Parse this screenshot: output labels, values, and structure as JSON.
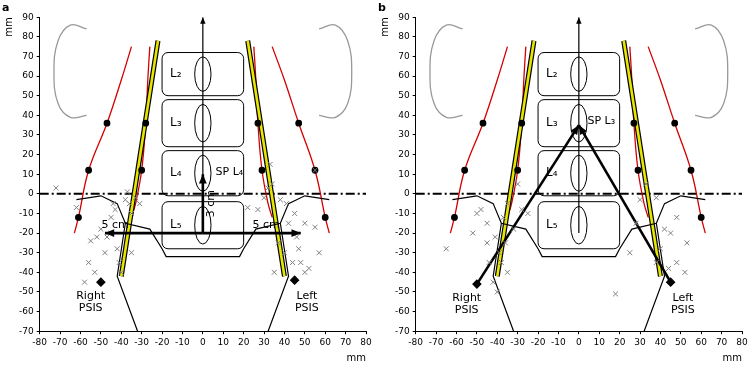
{
  "chart_data": [
    {
      "type": "scatter",
      "title": "a",
      "x_label": "mm",
      "y_label": "mm",
      "xlim": [
        -80,
        80
      ],
      "xticks": [
        -80,
        -70,
        -60,
        -50,
        -40,
        -30,
        -20,
        -10,
        0,
        10,
        20,
        30,
        40,
        50,
        60,
        70,
        80
      ],
      "ylim": [
        -70,
        90
      ],
      "yticks": [
        -70,
        -60,
        -50,
        -40,
        -30,
        -20,
        -10,
        0,
        10,
        20,
        30,
        40,
        50,
        60,
        70,
        80,
        90
      ],
      "grid": false,
      "vertebrae": [
        {
          "label": "L₂",
          "x": [
            -20,
            20
          ],
          "y": [
            50,
            72
          ]
        },
        {
          "label": "L₃",
          "x": [
            -20,
            20
          ],
          "y": [
            24,
            48
          ]
        },
        {
          "label": "L₄",
          "x": [
            -20,
            20
          ],
          "y": [
            -1,
            22
          ]
        },
        {
          "label": "L₅",
          "x": [
            -20,
            20
          ],
          "y": [
            -28,
            -4
          ]
        }
      ],
      "series": [
        {
          "type": "line",
          "line_style": "dashdot",
          "color": "#000000",
          "x": [
            -80,
            80
          ],
          "values": [
            0,
            0
          ]
        },
        {
          "type": "line",
          "line_style": "smooth",
          "color": "#999999",
          "x": [
            -57,
            -65,
            -71,
            -73,
            -71,
            -65,
            -57
          ],
          "values": [
            84,
            86,
            78,
            62,
            46,
            39,
            40
          ]
        },
        {
          "type": "line",
          "line_style": "smooth",
          "color": "#999999",
          "x": [
            57,
            65,
            71,
            73,
            71,
            65,
            57
          ],
          "values": [
            84,
            86,
            78,
            62,
            46,
            39,
            40
          ]
        },
        {
          "type": "line",
          "line_style": "smooth",
          "color": "#d40000",
          "x": [
            -35,
            -40,
            -47,
            -56,
            -61,
            -63
          ],
          "values": [
            75,
            58,
            36,
            12,
            -12,
            -20
          ]
        },
        {
          "type": "line",
          "line_style": "smooth",
          "color": "#d40000",
          "x": [
            -26,
            -27,
            -28,
            -30,
            -33,
            -35
          ],
          "values": [
            75,
            58,
            36,
            12,
            -5,
            -12
          ]
        },
        {
          "type": "line",
          "line_style": "smooth",
          "color": "#d40000",
          "x": [
            34,
            40,
            47,
            55,
            60,
            62
          ],
          "values": [
            75,
            58,
            36,
            12,
            -12,
            -20
          ]
        },
        {
          "type": "line",
          "line_style": "smooth",
          "color": "#d40000",
          "x": [
            25,
            26,
            27,
            29,
            32,
            34
          ],
          "values": [
            75,
            58,
            36,
            12,
            -5,
            -12
          ]
        },
        {
          "type": "line",
          "line_style": "double",
          "color": "#e6e600",
          "x": [
            -22,
            -40
          ],
          "values": [
            78,
            -42
          ]
        },
        {
          "type": "line",
          "line_style": "double",
          "color": "#e6e600",
          "x": [
            22,
            40
          ],
          "values": [
            78,
            -42
          ]
        },
        {
          "type": "line",
          "line_style": "solid",
          "color": "#000000",
          "x": [
            -62,
            -50,
            -42,
            -38,
            -26,
            -20,
            -18,
            18,
            20,
            26,
            38,
            42,
            50,
            62
          ],
          "values": [
            -3,
            -1,
            -5,
            -15,
            -18,
            -28,
            -32,
            -32,
            -28,
            -18,
            -15,
            -5,
            -1,
            -3
          ]
        },
        {
          "type": "line",
          "line_style": "solid",
          "color": "#000000",
          "x": [
            -38,
            -42,
            -32
          ],
          "values": [
            -15,
            -42,
            -70
          ]
        },
        {
          "type": "line",
          "line_style": "solid",
          "color": "#000000",
          "x": [
            38,
            42,
            32
          ],
          "values": [
            -15,
            -42,
            -70
          ]
        },
        {
          "type": "line",
          "line_style": "solid",
          "marker": "arrow",
          "color": "#000000",
          "x": [
            0,
            0
          ],
          "values": [
            -20,
            90
          ]
        },
        {
          "type": "line",
          "line_style": "bold",
          "marker": "arrow",
          "color": "#000000",
          "x": [
            0,
            -48
          ],
          "values": [
            -20,
            -20
          ]
        },
        {
          "type": "line",
          "line_style": "bold",
          "marker": "arrow",
          "color": "#000000",
          "x": [
            0,
            48
          ],
          "values": [
            -20,
            -20
          ]
        },
        {
          "type": "line",
          "line_style": "bold",
          "marker": "arrow",
          "color": "#000000",
          "x": [
            0,
            0
          ],
          "values": [
            -20,
            10
          ]
        },
        {
          "type": "scatter",
          "marker": "circle",
          "color": "#000000",
          "x": [
            -47,
            -56,
            -61,
            -28,
            -30,
            47,
            55,
            60,
            27,
            29
          ],
          "values": [
            36,
            12,
            -12,
            36,
            12,
            36,
            12,
            -12,
            36,
            12
          ]
        },
        {
          "type": "scatter",
          "marker": "x",
          "color": "#808080",
          "x": [
            -72,
            -62,
            -58,
            -56,
            -55,
            -52,
            -50,
            -48,
            -47,
            -45,
            -45,
            -44,
            -43,
            -42,
            -41,
            -40,
            -38,
            -37,
            -36,
            -35,
            -33,
            -31,
            -53,
            -35
          ],
          "values": [
            3,
            -7,
            -45,
            -35,
            -24,
            -22,
            -18,
            -30,
            -22,
            -12,
            -20,
            -5,
            -8,
            -28,
            -35,
            -40,
            -3,
            1,
            -5,
            -10,
            -2,
            -5,
            -40,
            -30
          ]
        },
        {
          "type": "scatter",
          "marker": "x",
          "color": "#808080",
          "x": [
            22,
            27,
            30,
            32,
            33,
            34,
            37,
            38,
            40,
            41,
            42,
            44,
            46,
            47,
            48,
            50,
            52,
            55,
            55,
            57,
            50,
            45,
            35
          ],
          "values": [
            -7,
            -8,
            -2,
            3,
            15,
            5,
            -25,
            -3,
            -30,
            -5,
            -15,
            -35,
            -22,
            -28,
            -35,
            -40,
            -38,
            12,
            -17,
            -30,
            -15,
            -10,
            -40
          ]
        },
        {
          "type": "scatter",
          "marker": "diamond",
          "color": "#000000",
          "x": [
            -50,
            45
          ],
          "values": [
            -45,
            -44
          ]
        }
      ],
      "annotations": [
        {
          "text": "5 cm",
          "x": -43,
          "y": -16
        },
        {
          "text": "5 cm",
          "x": 31,
          "y": -16
        },
        {
          "text": "3 cm",
          "x": 4,
          "y": -5,
          "vertical": true
        },
        {
          "text": "SP L₄",
          "x": 13,
          "y": 11
        },
        {
          "text": "Right\nPSIS",
          "x": -55,
          "y": -55
        },
        {
          "text": "Left\nPSIS",
          "x": 51,
          "y": -55
        }
      ]
    },
    {
      "type": "scatter",
      "title": "b",
      "x_label": "mm",
      "y_label": "mm",
      "xlim": [
        -80,
        80
      ],
      "xticks": [
        -80,
        -70,
        -60,
        -50,
        -40,
        -30,
        -20,
        -10,
        0,
        10,
        20,
        30,
        40,
        50,
        60,
        70,
        80
      ],
      "ylim": [
        -70,
        90
      ],
      "yticks": [
        -70,
        -60,
        -50,
        -40,
        -30,
        -20,
        -10,
        0,
        10,
        20,
        30,
        40,
        50,
        60,
        70,
        80,
        90
      ],
      "grid": false,
      "vertebrae": [
        {
          "label": "L₂",
          "x": [
            -20,
            20
          ],
          "y": [
            50,
            72
          ]
        },
        {
          "label": "L₃",
          "x": [
            -20,
            20
          ],
          "y": [
            24,
            48
          ]
        },
        {
          "label": "L₄",
          "x": [
            -20,
            20
          ],
          "y": [
            -1,
            22
          ]
        },
        {
          "label": "L₅",
          "x": [
            -20,
            20
          ],
          "y": [
            -28,
            -4
          ]
        }
      ],
      "series": [
        {
          "type": "line",
          "line_style": "dashdot",
          "color": "#000000",
          "x": [
            -80,
            80
          ],
          "values": [
            0,
            0
          ]
        },
        {
          "type": "line",
          "line_style": "smooth",
          "color": "#999999",
          "x": [
            -57,
            -65,
            -71,
            -73,
            -71,
            -65,
            -57
          ],
          "values": [
            84,
            86,
            78,
            62,
            46,
            39,
            40
          ]
        },
        {
          "type": "line",
          "line_style": "smooth",
          "color": "#999999",
          "x": [
            57,
            65,
            71,
            73,
            71,
            65,
            57
          ],
          "values": [
            84,
            86,
            78,
            62,
            46,
            39,
            40
          ]
        },
        {
          "type": "line",
          "line_style": "smooth",
          "color": "#d40000",
          "x": [
            -35,
            -40,
            -47,
            -56,
            -61,
            -63
          ],
          "values": [
            75,
            58,
            36,
            12,
            -12,
            -20
          ]
        },
        {
          "type": "line",
          "line_style": "smooth",
          "color": "#d40000",
          "x": [
            -26,
            -27,
            -28,
            -30,
            -33,
            -35
          ],
          "values": [
            75,
            58,
            36,
            12,
            -5,
            -12
          ]
        },
        {
          "type": "line",
          "line_style": "smooth",
          "color": "#d40000",
          "x": [
            34,
            40,
            47,
            55,
            60,
            62
          ],
          "values": [
            75,
            58,
            36,
            12,
            -12,
            -20
          ]
        },
        {
          "type": "line",
          "line_style": "smooth",
          "color": "#d40000",
          "x": [
            25,
            26,
            27,
            29,
            32,
            34
          ],
          "values": [
            75,
            58,
            36,
            12,
            -5,
            -12
          ]
        },
        {
          "type": "line",
          "line_style": "double",
          "color": "#e6e600",
          "x": [
            -22,
            -40
          ],
          "values": [
            78,
            -42
          ]
        },
        {
          "type": "line",
          "line_style": "double",
          "color": "#e6e600",
          "x": [
            22,
            40
          ],
          "values": [
            78,
            -42
          ]
        },
        {
          "type": "line",
          "line_style": "solid",
          "color": "#000000",
          "x": [
            -62,
            -50,
            -42,
            -38,
            -26,
            -20,
            -18,
            18,
            20,
            26,
            38,
            42,
            50,
            62
          ],
          "values": [
            -3,
            -1,
            -5,
            -15,
            -18,
            -28,
            -32,
            -32,
            -28,
            -18,
            -15,
            -5,
            -1,
            -3
          ]
        },
        {
          "type": "line",
          "line_style": "solid",
          "color": "#000000",
          "x": [
            -38,
            -42,
            -32
          ],
          "values": [
            -15,
            -42,
            -70
          ]
        },
        {
          "type": "line",
          "line_style": "solid",
          "color": "#000000",
          "x": [
            38,
            42,
            32
          ],
          "values": [
            -15,
            -42,
            -70
          ]
        },
        {
          "type": "line",
          "line_style": "solid",
          "marker": "arrow",
          "color": "#000000",
          "x": [
            0,
            0
          ],
          "values": [
            -20,
            90
          ]
        },
        {
          "type": "line",
          "line_style": "bold",
          "marker": "arrow",
          "color": "#000000",
          "x": [
            -50,
            0
          ],
          "values": [
            -46,
            35
          ]
        },
        {
          "type": "line",
          "line_style": "bold",
          "marker": "arrow",
          "color": "#000000",
          "x": [
            45,
            0
          ],
          "values": [
            -45,
            35
          ]
        },
        {
          "type": "scatter",
          "marker": "circle",
          "color": "#000000",
          "x": [
            -47,
            -56,
            -61,
            -28,
            -30,
            47,
            55,
            60,
            27,
            29
          ],
          "values": [
            36,
            12,
            -12,
            36,
            12,
            36,
            12,
            -12,
            36,
            12
          ]
        },
        {
          "type": "scatter",
          "marker": "x",
          "color": "#808080",
          "x": [
            -65,
            -52,
            -50,
            -48,
            -45,
            -44,
            -42,
            -41,
            -40,
            -39,
            -38,
            -37,
            -36,
            -35,
            -32,
            -30,
            -28,
            -25,
            -35,
            -45
          ],
          "values": [
            -28,
            -20,
            -10,
            -8,
            -25,
            -35,
            -45,
            -22,
            -50,
            -30,
            -35,
            -12,
            -25,
            -5,
            -18,
            5,
            -8,
            -10,
            -40,
            -15
          ]
        },
        {
          "type": "scatter",
          "marker": "x",
          "color": "#808080",
          "x": [
            18,
            25,
            28,
            30,
            33,
            38,
            38,
            40,
            42,
            44,
            48,
            48,
            52,
            53,
            45
          ],
          "values": [
            -51,
            -30,
            -15,
            -3,
            5,
            -2,
            -35,
            -28,
            -18,
            -38,
            -35,
            -12,
            -40,
            -25,
            -20
          ]
        },
        {
          "type": "scatter",
          "marker": "diamond",
          "color": "#000000",
          "x": [
            -50,
            45
          ],
          "values": [
            -46,
            -45
          ]
        }
      ],
      "annotations": [
        {
          "text": "SP L₃",
          "x": 11,
          "y": 37
        },
        {
          "text": "Right\nPSIS",
          "x": -55,
          "y": -56
        },
        {
          "text": "Left\nPSIS",
          "x": 51,
          "y": -56
        }
      ]
    }
  ]
}
